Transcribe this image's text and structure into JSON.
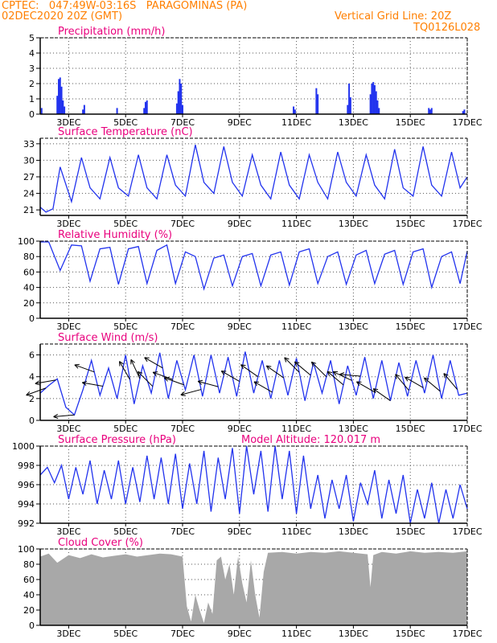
{
  "header": {
    "line1": "CPTEC:   047:49W-03:16S   PARAGOMINAS (PA)",
    "line2": "02DEC2020 20Z (GMT)",
    "grid_note": "Vertical Grid Line: 20Z",
    "run_id": "TQ0126L028"
  },
  "colors": {
    "header": "#ff7f00",
    "panel_title": "#e8007d",
    "series": "#2233ee",
    "cloud": "#a8a8a8",
    "arrow": "#000000"
  },
  "x_ticks": [
    "3DEC",
    "5DEC",
    "7DEC",
    "9DEC",
    "11DEC",
    "13DEC",
    "15DEC",
    "17DEC"
  ],
  "chart_data": [
    {
      "type": "bar",
      "title": "Precipitation (mm/h)",
      "ylim": [
        0,
        5
      ],
      "yticks": [
        "0",
        "1",
        "2",
        "3",
        "4",
        "5"
      ],
      "x": [
        2.05,
        2.6,
        2.65,
        2.7,
        2.75,
        2.8,
        2.85,
        3.5,
        3.55,
        4.7,
        5.65,
        5.7,
        5.75,
        6.8,
        6.85,
        6.9,
        6.95,
        7.0,
        10.9,
        10.95,
        11.7,
        11.75,
        12.8,
        12.85,
        12.9,
        13.6,
        13.65,
        13.7,
        13.75,
        13.8,
        13.85,
        13.9,
        15.65,
        15.7,
        15.75,
        16.85,
        16.9
      ],
      "values": [
        0.4,
        1.2,
        2.3,
        2.4,
        1.8,
        0.9,
        0.5,
        0.3,
        0.6,
        0.4,
        0.4,
        0.8,
        0.9,
        0.7,
        1.5,
        2.3,
        2.0,
        0.6,
        0.5,
        0.3,
        1.7,
        1.3,
        0.6,
        2.0,
        1.1,
        1.3,
        2.0,
        2.1,
        1.9,
        1.5,
        0.9,
        0.4,
        0.4,
        0.3,
        0.4,
        0.2,
        0.3
      ]
    },
    {
      "type": "line",
      "title": "Surface Temperature (nC)",
      "ylim": [
        20,
        34
      ],
      "yticks": [
        "21",
        "24",
        "27",
        "30",
        "33"
      ],
      "x": [
        2.0,
        2.2,
        2.45,
        2.7,
        3.1,
        3.45,
        3.75,
        4.1,
        4.45,
        4.75,
        5.1,
        5.45,
        5.75,
        6.1,
        6.45,
        6.75,
        7.1,
        7.45,
        7.75,
        8.1,
        8.45,
        8.75,
        9.1,
        9.45,
        9.75,
        10.1,
        10.45,
        10.75,
        11.1,
        11.45,
        11.75,
        12.1,
        12.45,
        12.75,
        13.1,
        13.45,
        13.75,
        14.1,
        14.45,
        14.75,
        15.1,
        15.45,
        15.75,
        16.1,
        16.45,
        16.75,
        17.0
      ],
      "values": [
        21.5,
        20.6,
        21.2,
        28.8,
        22.5,
        30.5,
        25.0,
        23.0,
        30.5,
        25.0,
        23.5,
        31.0,
        25.0,
        23.0,
        31.0,
        25.5,
        23.5,
        32.8,
        26.0,
        24.0,
        32.5,
        26.0,
        23.5,
        31.0,
        25.5,
        23.0,
        31.5,
        25.5,
        23.0,
        31.0,
        26.0,
        23.0,
        31.5,
        26.0,
        23.5,
        31.0,
        25.5,
        23.0,
        32.0,
        25.0,
        23.5,
        32.5,
        25.5,
        23.5,
        31.5,
        25.0,
        27.0
      ]
    },
    {
      "type": "line",
      "title": "Relative Humidity (%)",
      "ylim": [
        0,
        100
      ],
      "yticks": [
        "0",
        "20",
        "40",
        "60",
        "80",
        "100"
      ],
      "x": [
        2.0,
        2.3,
        2.7,
        3.1,
        3.45,
        3.75,
        4.1,
        4.45,
        4.75,
        5.1,
        5.45,
        5.75,
        6.1,
        6.45,
        6.75,
        7.1,
        7.45,
        7.75,
        8.1,
        8.45,
        8.75,
        9.1,
        9.45,
        9.75,
        10.1,
        10.45,
        10.75,
        11.1,
        11.45,
        11.75,
        12.1,
        12.45,
        12.75,
        13.1,
        13.45,
        13.75,
        14.1,
        14.45,
        14.75,
        15.1,
        15.45,
        15.75,
        16.1,
        16.45,
        16.75,
        17.0
      ],
      "values": [
        99,
        99,
        62,
        95,
        94,
        48,
        90,
        92,
        44,
        90,
        93,
        45,
        88,
        95,
        45,
        86,
        80,
        38,
        78,
        82,
        42,
        80,
        84,
        42,
        82,
        86,
        43,
        86,
        90,
        45,
        80,
        86,
        44,
        82,
        88,
        45,
        83,
        88,
        44,
        86,
        90,
        40,
        80,
        86,
        45,
        87
      ]
    },
    {
      "type": "line",
      "title": "Surface Wind (m/s)",
      "ylim": [
        0,
        7
      ],
      "yticks": [
        "0",
        "2",
        "4",
        "6"
      ],
      "x": [
        2.0,
        2.3,
        2.6,
        2.9,
        3.2,
        3.5,
        3.8,
        4.1,
        4.4,
        4.7,
        5.0,
        5.3,
        5.6,
        5.9,
        6.2,
        6.5,
        6.8,
        7.1,
        7.4,
        7.7,
        8.0,
        8.3,
        8.6,
        8.9,
        9.2,
        9.5,
        9.8,
        10.1,
        10.4,
        10.7,
        11.0,
        11.3,
        11.6,
        11.9,
        12.2,
        12.5,
        12.8,
        13.1,
        13.4,
        13.7,
        14.0,
        14.3,
        14.6,
        14.9,
        15.2,
        15.5,
        15.8,
        16.1,
        16.4,
        16.7,
        17.0
      ],
      "values": [
        2.5,
        3.2,
        3.8,
        1.2,
        0.5,
        2.8,
        5.5,
        2.3,
        4.8,
        2.0,
        6.0,
        1.5,
        5.0,
        2.5,
        6.2,
        2.0,
        5.5,
        2.8,
        6.0,
        2.2,
        6.0,
        2.5,
        5.8,
        2.2,
        6.3,
        2.5,
        5.5,
        2.0,
        5.5,
        2.3,
        5.7,
        1.8,
        5.3,
        2.5,
        5.5,
        1.5,
        5.0,
        2.3,
        5.8,
        2.0,
        5.5,
        1.8,
        5.3,
        2.2,
        5.5,
        2.5,
        6.0,
        2.0,
        5.5,
        2.3,
        2.5
      ]
    },
    {
      "type": "line",
      "title": "Surface Pressure (hPa)",
      "annotation": "Model Altitude: 120.017 m",
      "ylim": [
        992,
        1000
      ],
      "yticks": [
        "992",
        "994",
        "996",
        "998",
        "1000"
      ],
      "x": [
        2.0,
        2.25,
        2.5,
        2.75,
        3.0,
        3.25,
        3.5,
        3.75,
        4.0,
        4.25,
        4.5,
        4.75,
        5.0,
        5.25,
        5.5,
        5.75,
        6.0,
        6.25,
        6.5,
        6.75,
        7.0,
        7.25,
        7.5,
        7.75,
        8.0,
        8.25,
        8.5,
        8.75,
        9.0,
        9.25,
        9.5,
        9.75,
        10.0,
        10.25,
        10.5,
        10.75,
        11.0,
        11.25,
        11.5,
        11.75,
        12.0,
        12.25,
        12.5,
        12.75,
        13.0,
        13.25,
        13.5,
        13.75,
        14.0,
        14.25,
        14.5,
        14.75,
        15.0,
        15.25,
        15.5,
        15.75,
        16.0,
        16.25,
        16.5,
        16.75,
        17.0
      ],
      "values": [
        997.0,
        997.8,
        996.2,
        998.0,
        994.5,
        997.8,
        995.0,
        998.5,
        994.0,
        997.5,
        994.5,
        998.5,
        994.0,
        997.8,
        994.2,
        999.0,
        994.5,
        998.8,
        994.0,
        999.2,
        993.5,
        998.2,
        994.0,
        999.5,
        993.2,
        998.8,
        994.5,
        999.8,
        993.0,
        1000.0,
        995.0,
        999.5,
        993.2,
        1000.0,
        994.5,
        999.5,
        993.0,
        999.0,
        993.5,
        997.0,
        992.5,
        996.5,
        993.5,
        997.0,
        992.2,
        996.2,
        994.0,
        997.5,
        992.5,
        996.5,
        993.0,
        997.0,
        992.0,
        995.5,
        992.5,
        996.2,
        992.0,
        995.5,
        992.5,
        996.0,
        993.5
      ]
    },
    {
      "type": "area",
      "title": "Cloud Cover (%)",
      "ylim": [
        0,
        100
      ],
      "yticks": [
        "0",
        "20",
        "40",
        "60",
        "80",
        "100"
      ],
      "x": [
        2.0,
        2.3,
        2.6,
        3.0,
        3.4,
        3.8,
        4.2,
        4.6,
        5.0,
        5.4,
        5.8,
        6.2,
        6.6,
        7.0,
        7.15,
        7.3,
        7.45,
        7.6,
        7.75,
        7.9,
        8.05,
        8.2,
        8.35,
        8.5,
        8.65,
        8.8,
        8.95,
        9.1,
        9.25,
        9.4,
        9.55,
        9.7,
        9.85,
        10.0,
        10.5,
        11.0,
        11.5,
        12.0,
        12.5,
        13.0,
        13.5,
        13.6,
        13.7,
        14.0,
        14.5,
        15.0,
        15.5,
        16.0,
        16.5,
        17.0
      ],
      "values": [
        90,
        94,
        82,
        92,
        88,
        93,
        89,
        91,
        93,
        90,
        92,
        94,
        93,
        90,
        25,
        5,
        40,
        20,
        3,
        30,
        15,
        85,
        90,
        60,
        80,
        40,
        90,
        55,
        30,
        85,
        40,
        10,
        70,
        95,
        96,
        94,
        96,
        95,
        97,
        95,
        93,
        50,
        92,
        96,
        94,
        97,
        95,
        96,
        95,
        97
      ]
    }
  ],
  "wind_arrows": [
    {
      "x": 2.2,
      "dir": 200
    },
    {
      "x": 2.55,
      "dir": 190
    },
    {
      "x": 3.2,
      "dir": 185
    },
    {
      "x": 3.9,
      "dir": 160
    },
    {
      "x": 4.2,
      "dir": 170
    },
    {
      "x": 5.15,
      "dir": 120
    },
    {
      "x": 5.5,
      "dir": 115
    },
    {
      "x": 5.95,
      "dir": 135
    },
    {
      "x": 6.3,
      "dir": 150
    },
    {
      "x": 6.65,
      "dir": 160
    },
    {
      "x": 7.05,
      "dir": 160
    },
    {
      "x": 7.65,
      "dir": 195
    },
    {
      "x": 8.25,
      "dir": 165
    },
    {
      "x": 9.0,
      "dir": 150
    },
    {
      "x": 9.65,
      "dir": 145
    },
    {
      "x": 10.15,
      "dir": 150
    },
    {
      "x": 10.55,
      "dir": 145
    },
    {
      "x": 11.1,
      "dir": 135
    },
    {
      "x": 11.5,
      "dir": 140
    },
    {
      "x": 12.05,
      "dir": 135
    },
    {
      "x": 12.65,
      "dir": 140
    },
    {
      "x": 12.95,
      "dir": 155
    },
    {
      "x": 13.25,
      "dir": 175
    },
    {
      "x": 13.75,
      "dir": 150
    },
    {
      "x": 14.3,
      "dir": 145
    },
    {
      "x": 14.95,
      "dir": 130
    },
    {
      "x": 15.45,
      "dir": 150
    },
    {
      "x": 16.05,
      "dir": 140
    },
    {
      "x": 16.65,
      "dir": 130
    }
  ]
}
